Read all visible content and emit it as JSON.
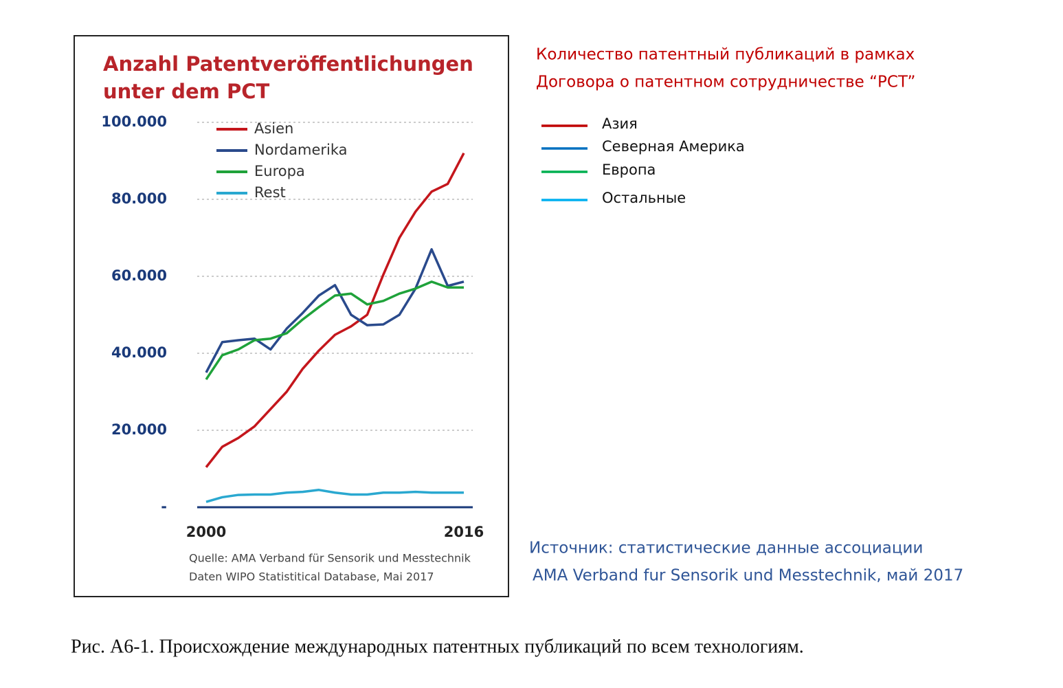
{
  "chart_data": {
    "type": "line",
    "title": [
      "Anzahl Patentveröffentlichungen",
      "unter dem PCT"
    ],
    "x": [
      2000,
      2001,
      2002,
      2003,
      2004,
      2005,
      2006,
      2007,
      2008,
      2009,
      2010,
      2011,
      2012,
      2013,
      2014,
      2015,
      2016
    ],
    "xlim": [
      2000,
      2016
    ],
    "xticks": [
      2000,
      2016
    ],
    "ylim": [
      0,
      100000
    ],
    "yticks": [
      {
        "value": 0,
        "label": "-"
      },
      {
        "value": 20000,
        "label": "20.000"
      },
      {
        "value": 40000,
        "label": "40.000"
      },
      {
        "value": 60000,
        "label": "60.000"
      },
      {
        "value": 80000,
        "label": "80.000"
      },
      {
        "value": 100000,
        "label": "100.000"
      }
    ],
    "grid": true,
    "legend": "upper left",
    "series": [
      {
        "name": "Asien",
        "color": "#c4161c",
        "values": [
          10400,
          15700,
          18000,
          21000,
          25500,
          30000,
          36000,
          40700,
          44800,
          47000,
          50000,
          60400,
          70000,
          76800,
          82000,
          84000,
          92000
        ]
      },
      {
        "name": "Nordamerika",
        "color": "#2a4a8c",
        "values": [
          35000,
          42900,
          43400,
          43800,
          41000,
          46400,
          50500,
          55000,
          57700,
          50000,
          47300,
          47500,
          50000,
          56800,
          67000,
          57500,
          58600
        ]
      },
      {
        "name": "Europa",
        "color": "#1fa23a",
        "values": [
          33200,
          39500,
          41000,
          43400,
          43800,
          45200,
          48800,
          52000,
          55000,
          55500,
          52700,
          53600,
          55500,
          56800,
          58600,
          57100,
          57100
        ]
      },
      {
        "name": "Rest",
        "color": "#2aa8d0",
        "values": [
          1400,
          2600,
          3200,
          3300,
          3300,
          3800,
          4000,
          4500,
          3800,
          3300,
          3300,
          3800,
          3800,
          4000,
          3800,
          3800,
          3800
        ]
      }
    ],
    "source": [
      "Quelle: AMA Verband für Sensorik und Messtechnik",
      "Daten WIPO Statistitical Database, Mai 2017"
    ]
  },
  "translation": {
    "title": [
      "Количество патентный публикаций в рамках",
      "Договора о патентном сотрудничестве “PCT”"
    ],
    "legend": [
      {
        "name": "Азия",
        "color": "#c00000"
      },
      {
        "name": "Северная Америка",
        "color": "#0070c0"
      },
      {
        "name": "Европа",
        "color": "#00b050"
      },
      {
        "name": "Остальные",
        "color": "#00b0f0"
      }
    ],
    "source": [
      "Источник: статистические данные ассоциации",
      "AMA Verband fur Sensorik  und  Messtechnik, май 2017"
    ]
  },
  "caption": "Рис. А6-1.  Происхождение международных патентных публикаций по всем технологиям."
}
